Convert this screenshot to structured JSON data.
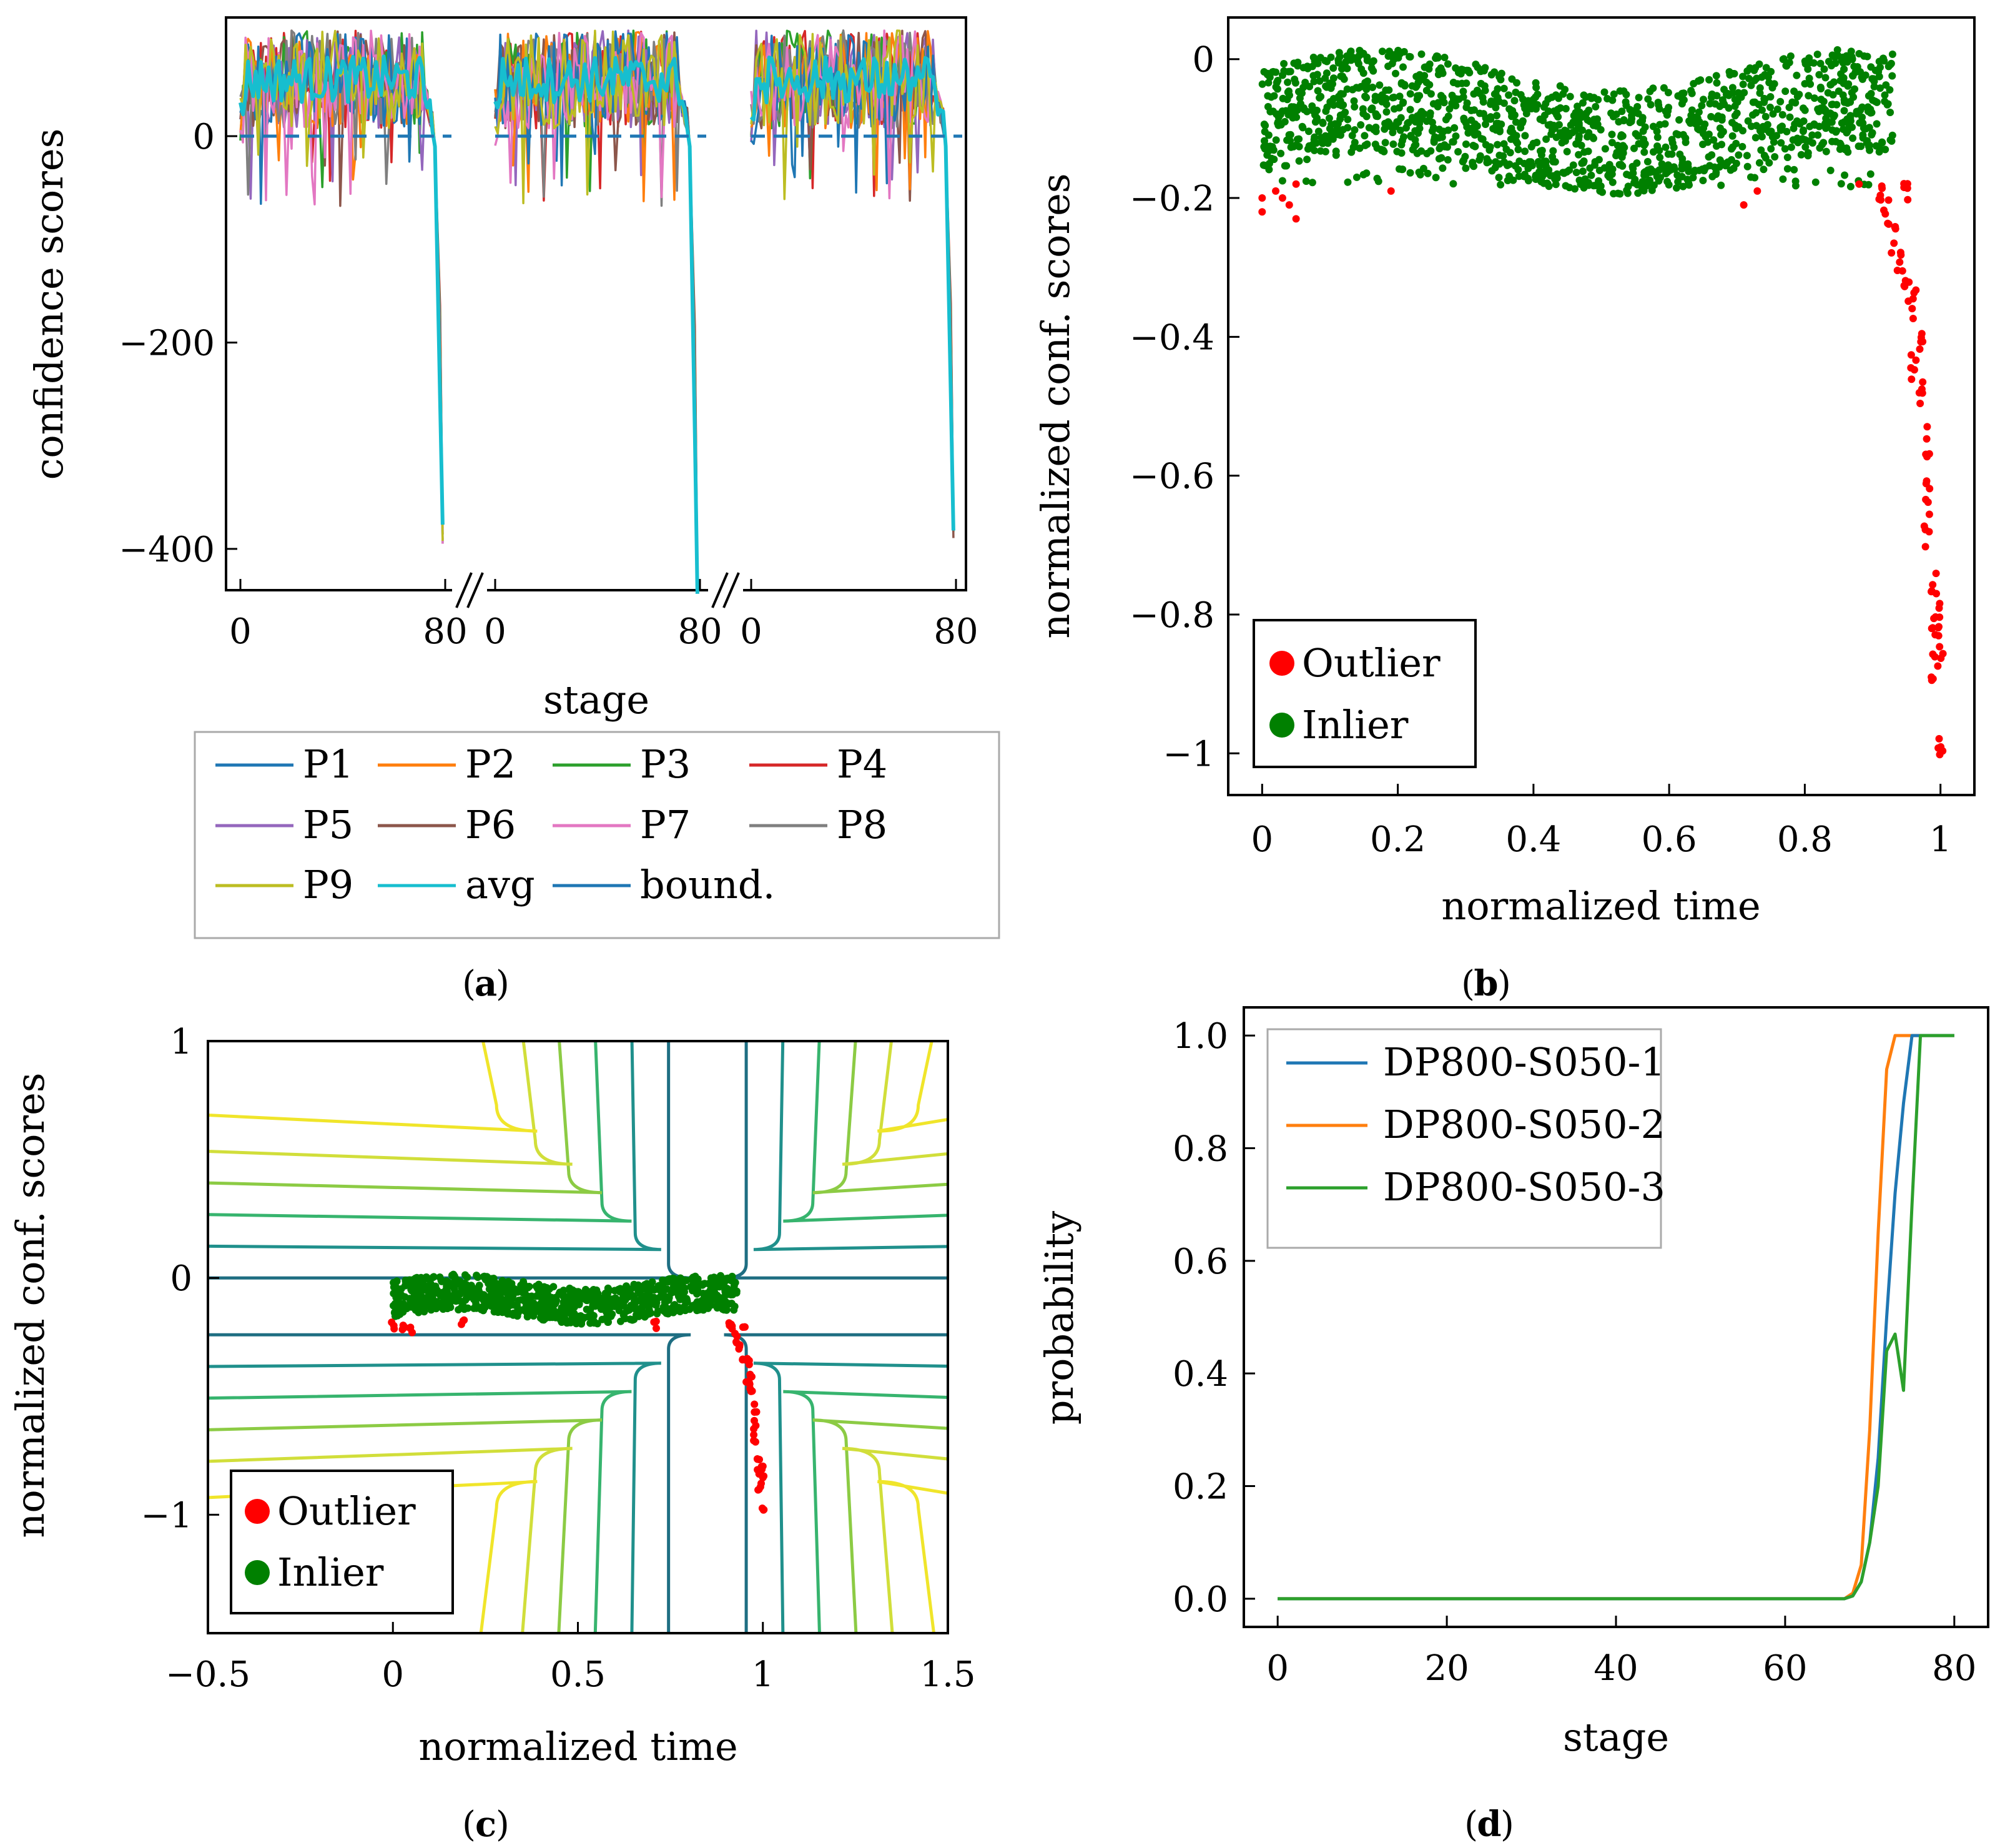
{
  "colors": {
    "P1": "#1f77b4",
    "P2": "#ff7f0e",
    "P3": "#2ca02c",
    "P4": "#d62728",
    "P5": "#9467bd",
    "P6": "#8c564b",
    "P7": "#e377c2",
    "P8": "#7f7f7f",
    "P9": "#bcbd22",
    "avg": "#17becf",
    "bound": "#1f77b4",
    "outlier": "#ff0000",
    "inlier": "#008000",
    "contour_levels": [
      "#1e6e82",
      "#20908c",
      "#37b46e",
      "#8ccb44",
      "#d1de3a",
      "#f0e52a"
    ]
  },
  "captions": {
    "a": "a",
    "b": "b",
    "c": "c",
    "d": "d"
  },
  "chart_data": [
    {
      "id": "a",
      "type": "line",
      "xlabel": "stage",
      "ylabel": "confidence scores",
      "ylim": [
        -440,
        115
      ],
      "yticks": [
        0,
        -200,
        -400
      ],
      "ytick_labels": [
        "0",
        "−200",
        "−400"
      ],
      "segments": 3,
      "segment_xlim": [
        0,
        80
      ],
      "xtick_labels": [
        "0",
        "80",
        "0",
        "80",
        "0",
        "80"
      ],
      "break_marker": "//",
      "series_names": [
        "P1",
        "P2",
        "P3",
        "P4",
        "P5",
        "P6",
        "P7",
        "P8",
        "P9",
        "avg",
        "bound."
      ],
      "typical_range": [
        20,
        100
      ],
      "final_drop_values": [
        -385,
        -435,
        -380
      ],
      "boundary": 0,
      "legend_position": "below"
    },
    {
      "id": "b",
      "type": "scatter",
      "xlabel": "normalized time",
      "ylabel": "normalized conf. scores",
      "xlim": [
        -0.05,
        1.05
      ],
      "ylim": [
        -1.06,
        0.06
      ],
      "xticks": [
        0,
        0.2,
        0.4,
        0.6,
        0.8,
        1
      ],
      "xtick_labels": [
        "0",
        "0.2",
        "0.4",
        "0.6",
        "0.8",
        "1"
      ],
      "yticks": [
        0,
        -0.2,
        -0.4,
        -0.6,
        -0.8,
        -1
      ],
      "ytick_labels": [
        "0",
        "−0.2",
        "−0.4",
        "−0.6",
        "−0.8",
        "−1"
      ],
      "inlier_band": [
        -0.2,
        0.0
      ],
      "outlier_tail": [
        [
          0.91,
          -0.19
        ],
        [
          0.92,
          -0.22
        ],
        [
          0.93,
          -0.26
        ],
        [
          0.94,
          -0.3
        ],
        [
          0.95,
          -0.2
        ],
        [
          0.95,
          -0.33
        ],
        [
          0.96,
          -0.35
        ],
        [
          0.96,
          -0.44
        ],
        [
          0.97,
          -0.4
        ],
        [
          0.97,
          -0.48
        ],
        [
          0.98,
          -0.55
        ],
        [
          0.98,
          -0.62
        ],
        [
          0.98,
          -0.68
        ],
        [
          0.99,
          -0.75
        ],
        [
          0.99,
          -0.82
        ],
        [
          0.99,
          -0.88
        ],
        [
          1.0,
          -0.8
        ],
        [
          1.0,
          -0.85
        ],
        [
          1.0,
          -0.99
        ]
      ],
      "legend": [
        "Outlier",
        "Inlier"
      ],
      "legend_position": "bottom-left"
    },
    {
      "id": "c",
      "type": "scatter",
      "xlabel": "normalized time",
      "ylabel": "normalized conf. scores",
      "xlim": [
        -0.5,
        1.5
      ],
      "ylim": [
        -1.5,
        1.0
      ],
      "xticks": [
        -0.5,
        0,
        0.5,
        1,
        1.5
      ],
      "xtick_labels": [
        "−0.5",
        "0",
        "0.5",
        "1",
        "1.5"
      ],
      "yticks": [
        1,
        0,
        -1
      ],
      "ytick_labels": [
        "1",
        "0",
        "−1"
      ],
      "contour_center": [
        0.85,
        -0.12
      ],
      "contour_levels": 6,
      "legend": [
        "Outlier",
        "Inlier"
      ],
      "legend_position": "bottom-left"
    },
    {
      "id": "d",
      "type": "line",
      "xlabel": "stage",
      "ylabel": "probability",
      "xlim": [
        -4,
        84
      ],
      "ylim": [
        -0.05,
        1.05
      ],
      "xticks": [
        0,
        20,
        40,
        60,
        80
      ],
      "xtick_labels": [
        "0",
        "20",
        "40",
        "60",
        "80"
      ],
      "yticks": [
        0.0,
        0.2,
        0.4,
        0.6,
        0.8,
        1.0
      ],
      "ytick_labels": [
        "0.0",
        "0.2",
        "0.4",
        "0.6",
        "0.8",
        "1.0"
      ],
      "series": [
        {
          "name": "DP800-S050-1",
          "color": "#1f77b4",
          "points": [
            [
              0,
              0
            ],
            [
              67,
              0
            ],
            [
              68,
              0.005
            ],
            [
              69,
              0.03
            ],
            [
              70,
              0.1
            ],
            [
              71,
              0.25
            ],
            [
              72,
              0.5
            ],
            [
              73,
              0.72
            ],
            [
              74,
              0.88
            ],
            [
              75,
              1.0
            ],
            [
              80,
              1.0
            ]
          ]
        },
        {
          "name": "DP800-S050-2",
          "color": "#ff7f0e",
          "points": [
            [
              0,
              0
            ],
            [
              67,
              0
            ],
            [
              68,
              0.01
            ],
            [
              69,
              0.06
            ],
            [
              70,
              0.3
            ],
            [
              71,
              0.65
            ],
            [
              72,
              0.94
            ],
            [
              73,
              1.0
            ],
            [
              80,
              1.0
            ]
          ]
        },
        {
          "name": "DP800-S050-3",
          "color": "#2ca02c",
          "points": [
            [
              0,
              0
            ],
            [
              67,
              0
            ],
            [
              68,
              0.005
            ],
            [
              69,
              0.03
            ],
            [
              70,
              0.1
            ],
            [
              71,
              0.2
            ],
            [
              72,
              0.44
            ],
            [
              73,
              0.47
            ],
            [
              74,
              0.37
            ],
            [
              75,
              0.7
            ],
            [
              76,
              1.0
            ],
            [
              80,
              1.0
            ]
          ]
        }
      ],
      "legend_position": "top-left"
    }
  ]
}
